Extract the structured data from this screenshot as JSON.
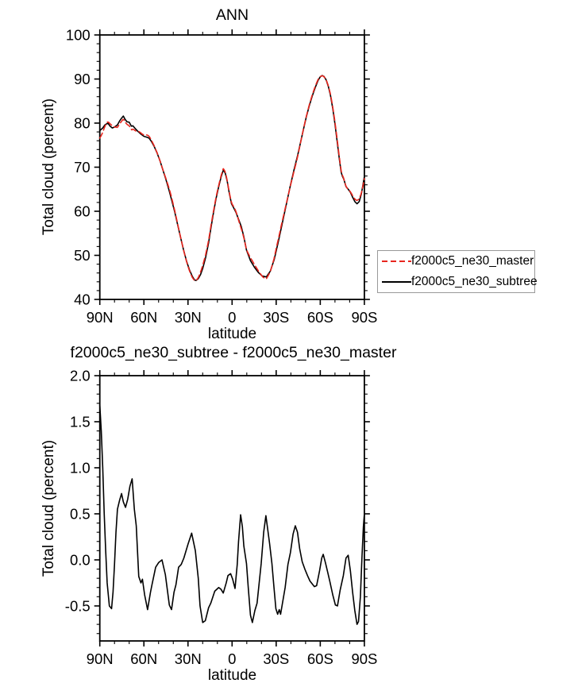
{
  "figure": {
    "background": "#ffffff",
    "accent_red": "#e8261e",
    "line_black": "#000000"
  },
  "chart_data": [
    {
      "type": "line",
      "title": "ANN",
      "xlabel": "latitude",
      "ylabel": "Total cloud (percent)",
      "xlim": [
        90,
        -90
      ],
      "ylim": [
        40,
        100
      ],
      "grid": false,
      "legend_position": "outside-right-center",
      "x_ticks": [
        [
          90,
          "90N"
        ],
        [
          60,
          "60N"
        ],
        [
          30,
          "30N"
        ],
        [
          0,
          "0"
        ],
        [
          -30,
          "30S"
        ],
        [
          -60,
          "60S"
        ],
        [
          -90,
          "90S"
        ]
      ],
      "x_minor_step": 10,
      "y_ticks": [
        [
          40,
          "40"
        ],
        [
          50,
          "50"
        ],
        [
          60,
          "60"
        ],
        [
          70,
          "70"
        ],
        [
          80,
          "80"
        ],
        [
          90,
          "90"
        ],
        [
          100,
          "100"
        ]
      ],
      "y_minor_step": 2,
      "series": [
        {
          "name": "f2000c5_ne30_master",
          "color": "#e8261e",
          "line_style": "dashed",
          "derived": "subtree_minus_difference",
          "note": "red dashed curve; equals f2000c5_ne30_subtree minus the difference series shown in the second chart, nearly overlapping the black curve"
        },
        {
          "name": "f2000c5_ne30_subtree",
          "color": "#000000",
          "line_style": "solid",
          "points": [
            [
              90,
              78.3
            ],
            [
              88,
              78.9
            ],
            [
              86.5,
              79.6
            ],
            [
              84.5,
              80.0
            ],
            [
              83,
              79.3
            ],
            [
              81.5,
              78.9
            ],
            [
              80,
              79.1
            ],
            [
              78,
              79.6
            ],
            [
              76.5,
              80.5
            ],
            [
              75,
              81.2
            ],
            [
              74,
              81.6
            ],
            [
              72.7,
              80.8
            ],
            [
              71.5,
              80.3
            ],
            [
              70,
              80.2
            ],
            [
              68.5,
              79.3
            ],
            [
              67.5,
              79.4
            ],
            [
              66,
              78.8
            ],
            [
              64,
              78.1
            ],
            [
              62,
              77.5
            ],
            [
              60,
              77.0
            ],
            [
              58,
              76.8
            ],
            [
              56.5,
              76.6
            ],
            [
              55,
              75.9
            ],
            [
              53,
              74.7
            ],
            [
              51,
              73.2
            ],
            [
              49,
              71.4
            ],
            [
              47,
              69.3
            ],
            [
              45,
              67.2
            ],
            [
              43,
              64.9
            ],
            [
              41,
              62.4
            ],
            [
              39,
              59.8
            ],
            [
              37,
              56.9
            ],
            [
              35,
              54.0
            ],
            [
              33,
              51.2
            ],
            [
              31,
              48.7
            ],
            [
              29,
              46.7
            ],
            [
              27,
              45.2
            ],
            [
              25.5,
              44.4
            ],
            [
              24.5,
              44.3
            ],
            [
              23,
              44.7
            ],
            [
              21.5,
              45.6
            ],
            [
              20,
              47.0
            ],
            [
              18,
              49.5
            ],
            [
              16,
              52.8
            ],
            [
              14.5,
              56.0
            ],
            [
              12.7,
              59.6
            ],
            [
              10.9,
              62.9
            ],
            [
              9.1,
              65.6
            ],
            [
              7.3,
              68.0
            ],
            [
              5.9,
              69.4
            ],
            [
              4.6,
              68.6
            ],
            [
              3.3,
              66.8
            ],
            [
              1.9,
              64.1
            ],
            [
              0.4,
              61.7
            ],
            [
              -0.9,
              60.9
            ],
            [
              -2.7,
              59.7
            ],
            [
              -4.5,
              58.1
            ],
            [
              -6.2,
              56.6
            ],
            [
              -8,
              54.2
            ],
            [
              -9.8,
              51.2
            ],
            [
              -12.5,
              48.8
            ],
            [
              -15.2,
              47.3
            ],
            [
              -17.9,
              46.1
            ],
            [
              -20.6,
              45.3
            ],
            [
              -23.3,
              45.1
            ],
            [
              -26,
              46.4
            ],
            [
              -28.7,
              49.1
            ],
            [
              -31.4,
              53.0
            ],
            [
              -34.1,
              57.2
            ],
            [
              -36.8,
              61.4
            ],
            [
              -39.5,
              65.6
            ],
            [
              -42.2,
              69.5
            ],
            [
              -44.7,
              72.8
            ],
            [
              -46.5,
              75.5
            ],
            [
              -48.5,
              78.5
            ],
            [
              -50.5,
              81.4
            ],
            [
              -52.5,
              83.9
            ],
            [
              -54.5,
              86.1
            ],
            [
              -56.5,
              88.0
            ],
            [
              -58.5,
              89.7
            ],
            [
              -60,
              90.5
            ],
            [
              -61.3,
              90.8
            ],
            [
              -62.5,
              90.6
            ],
            [
              -64,
              89.8
            ],
            [
              -65.5,
              88.3
            ],
            [
              -67,
              86.2
            ],
            [
              -68.5,
              83.3
            ],
            [
              -70,
              79.8
            ],
            [
              -71.5,
              75.8
            ],
            [
              -73,
              71.8
            ],
            [
              -74.2,
              68.9
            ],
            [
              -75,
              68.0
            ],
            [
              -76,
              67.3
            ],
            [
              -77.5,
              65.6
            ],
            [
              -79,
              65.0
            ],
            [
              -80.5,
              64.3
            ],
            [
              -82,
              63.2
            ],
            [
              -83.5,
              62.2
            ],
            [
              -85,
              61.7
            ],
            [
              -86.5,
              62.2
            ],
            [
              -88,
              64.0
            ],
            [
              -89.2,
              66.3
            ],
            [
              -90,
              67.9
            ]
          ]
        }
      ]
    },
    {
      "type": "line",
      "title": "f2000c5_ne30_subtree - f2000c5_ne30_master",
      "xlabel": "latitude",
      "ylabel": "Total cloud (percent)",
      "xlim": [
        90,
        -90
      ],
      "ylim": [
        -0.88,
        2.0
      ],
      "grid": false,
      "x_ticks": [
        [
          90,
          "90N"
        ],
        [
          60,
          "60N"
        ],
        [
          30,
          "30N"
        ],
        [
          0,
          "0"
        ],
        [
          -30,
          "30S"
        ],
        [
          -60,
          "60S"
        ],
        [
          -90,
          "90S"
        ]
      ],
      "x_minor_step": 10,
      "y_ticks": [
        [
          -0.5,
          "-0.5"
        ],
        [
          0.0,
          "0.0"
        ],
        [
          0.5,
          "0.5"
        ],
        [
          1.0,
          "1.0"
        ],
        [
          1.5,
          "1.5"
        ],
        [
          2.0,
          "2.0"
        ]
      ],
      "y_minor_step": 0.1,
      "series": [
        {
          "name": "difference",
          "color": "#000000",
          "line_style": "solid",
          "points": [
            [
              90,
              1.68
            ],
            [
              89,
              1.4
            ],
            [
              88,
              1.0
            ],
            [
              87,
              0.5
            ],
            [
              86,
              0.1
            ],
            [
              85,
              -0.25
            ],
            [
              83.5,
              -0.5
            ],
            [
              82,
              -0.53
            ],
            [
              81,
              -0.35
            ],
            [
              80,
              -0.05
            ],
            [
              79,
              0.3
            ],
            [
              78,
              0.55
            ],
            [
              76.5,
              0.65
            ],
            [
              75.2,
              0.72
            ],
            [
              74,
              0.63
            ],
            [
              72.5,
              0.57
            ],
            [
              71,
              0.66
            ],
            [
              69.5,
              0.8
            ],
            [
              68,
              0.88
            ],
            [
              66.5,
              0.55
            ],
            [
              65.2,
              0.37
            ],
            [
              63.5,
              -0.18
            ],
            [
              62,
              -0.25
            ],
            [
              61,
              -0.21
            ],
            [
              59.5,
              -0.38
            ],
            [
              57.5,
              -0.54
            ],
            [
              55.5,
              -0.35
            ],
            [
              54.5,
              -0.27
            ],
            [
              52,
              -0.08
            ],
            [
              50,
              -0.03
            ],
            [
              47.7,
              0.0
            ],
            [
              45.4,
              -0.16
            ],
            [
              42.7,
              -0.49
            ],
            [
              41.2,
              -0.54
            ],
            [
              39.5,
              -0.35
            ],
            [
              38.2,
              -0.27
            ],
            [
              36.4,
              -0.08
            ],
            [
              34.6,
              -0.05
            ],
            [
              32.8,
              0.02
            ],
            [
              30,
              0.17
            ],
            [
              27.5,
              0.29
            ],
            [
              25,
              0.1
            ],
            [
              23,
              -0.2
            ],
            [
              21.8,
              -0.5
            ],
            [
              20,
              -0.68
            ],
            [
              18.2,
              -0.66
            ],
            [
              16,
              -0.52
            ],
            [
              14.5,
              -0.47
            ],
            [
              11.8,
              -0.34
            ],
            [
              9.1,
              -0.3
            ],
            [
              7.5,
              -0.32
            ],
            [
              6,
              -0.36
            ],
            [
              4,
              -0.25
            ],
            [
              2.8,
              -0.17
            ],
            [
              1,
              -0.15
            ],
            [
              -0.4,
              -0.21
            ],
            [
              -2,
              -0.31
            ],
            [
              -3.5,
              -0.05
            ],
            [
              -4.4,
              0.2
            ],
            [
              -5.8,
              0.49
            ],
            [
              -7,
              0.36
            ],
            [
              -8,
              0.15
            ],
            [
              -9.8,
              -0.04
            ],
            [
              -11,
              -0.3
            ],
            [
              -12.5,
              -0.6
            ],
            [
              -13.8,
              -0.68
            ],
            [
              -15.5,
              -0.55
            ],
            [
              -17,
              -0.47
            ],
            [
              -19.8,
              -0.04
            ],
            [
              -21.5,
              0.3
            ],
            [
              -23,
              0.48
            ],
            [
              -25.5,
              0.18
            ],
            [
              -27.1,
              -0.04
            ],
            [
              -28.5,
              -0.3
            ],
            [
              -29.8,
              -0.53
            ],
            [
              -31,
              -0.59
            ],
            [
              -32.1,
              -0.54
            ],
            [
              -33,
              -0.59
            ],
            [
              -34.5,
              -0.45
            ],
            [
              -36.1,
              -0.3
            ],
            [
              -38,
              -0.05
            ],
            [
              -39.7,
              0.08
            ],
            [
              -41.5,
              0.28
            ],
            [
              -43,
              0.37
            ],
            [
              -44.5,
              0.3
            ],
            [
              -46,
              0.12
            ],
            [
              -47.7,
              -0.02
            ],
            [
              -49.5,
              -0.1
            ],
            [
              -51.3,
              -0.17
            ],
            [
              -53,
              -0.23
            ],
            [
              -54.5,
              -0.26
            ],
            [
              -56,
              -0.29
            ],
            [
              -57.5,
              -0.28
            ],
            [
              -59.5,
              -0.12
            ],
            [
              -61,
              0.02
            ],
            [
              -62,
              0.06
            ],
            [
              -63.5,
              -0.03
            ],
            [
              -65,
              -0.13
            ],
            [
              -66.6,
              -0.24
            ],
            [
              -68.5,
              -0.38
            ],
            [
              -70.3,
              -0.49
            ],
            [
              -71.7,
              -0.5
            ],
            [
              -73.5,
              -0.33
            ],
            [
              -75.7,
              -0.17
            ],
            [
              -77.5,
              0.02
            ],
            [
              -79,
              0.05
            ],
            [
              -80.5,
              -0.12
            ],
            [
              -82,
              -0.35
            ],
            [
              -83.5,
              -0.55
            ],
            [
              -85,
              -0.7
            ],
            [
              -86,
              -0.67
            ],
            [
              -87.3,
              -0.4
            ],
            [
              -88.4,
              0.04
            ],
            [
              -89.3,
              0.35
            ],
            [
              -90,
              0.5
            ]
          ]
        }
      ]
    }
  ],
  "legend": {
    "entries": [
      {
        "label": "f2000c5_ne30_master",
        "sample": "red-dashed-line"
      },
      {
        "label": "f2000c5_ne30_subtree",
        "sample": "black-solid-line"
      }
    ]
  }
}
